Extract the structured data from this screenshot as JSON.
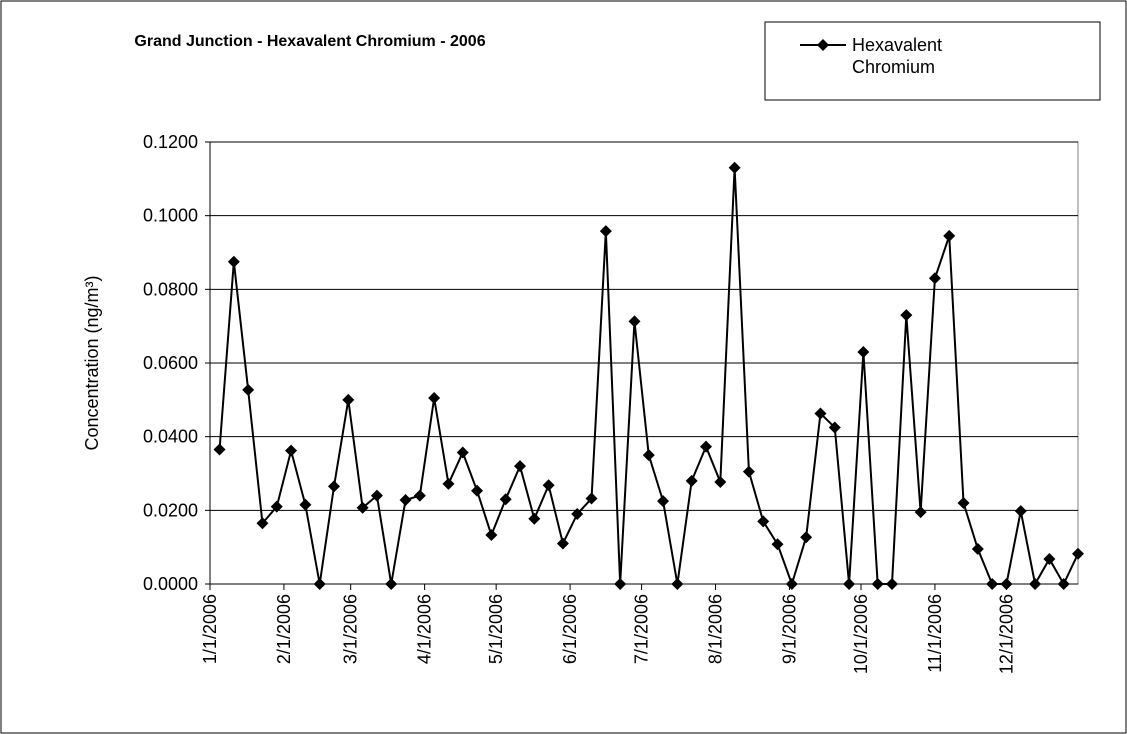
{
  "chart_data": {
    "type": "line",
    "title": "Grand Junction - Hexavalent Chromium - 2006",
    "ylabel": "Concentration (ng/m³)",
    "x": [
      "1/5/2006",
      "1/11/2006",
      "1/17/2006",
      "1/23/2006",
      "1/29/2006",
      "2/4/2006",
      "2/10/2006",
      "2/16/2006",
      "2/22/2006",
      "2/28/2006",
      "3/6/2006",
      "3/12/2006",
      "3/18/2006",
      "3/24/2006",
      "3/30/2006",
      "4/5/2006",
      "4/11/2006",
      "4/17/2006",
      "4/23/2006",
      "4/29/2006",
      "5/5/2006",
      "5/11/2006",
      "5/17/2006",
      "5/23/2006",
      "5/29/2006",
      "6/4/2006",
      "6/10/2006",
      "6/16/2006",
      "6/22/2006",
      "6/28/2006",
      "7/4/2006",
      "7/10/2006",
      "7/16/2006",
      "7/22/2006",
      "7/28/2006",
      "8/3/2006",
      "8/9/2006",
      "8/15/2006",
      "8/21/2006",
      "8/27/2006",
      "9/2/2006",
      "9/8/2006",
      "9/14/2006",
      "9/20/2006",
      "9/26/2006",
      "10/2/2006",
      "10/8/2006",
      "10/14/2006",
      "10/20/2006",
      "10/26/2006",
      "11/1/2006",
      "11/7/2006",
      "11/13/2006",
      "11/19/2006",
      "11/25/2006",
      "12/1/2006",
      "12/7/2006",
      "12/13/2006",
      "12/19/2006",
      "12/25/2006",
      "12/31/2006"
    ],
    "series": [
      {
        "name": "Hexavalent Chromium",
        "color": "#000000",
        "values": [
          0.0365,
          0.0875,
          0.0527,
          0.0165,
          0.021,
          0.0362,
          0.0215,
          0,
          0.0265,
          0.05,
          0.0207,
          0.024,
          0,
          0.0228,
          0.024,
          0.0505,
          0.0272,
          0.0357,
          0.0253,
          0.0133,
          0.023,
          0.032,
          0.0177,
          0.0268,
          0.011,
          0.019,
          0.0232,
          0.0958,
          0,
          0.0713,
          0.035,
          0.0225,
          0,
          0.028,
          0.0373,
          0.0277,
          0.113,
          0.0305,
          0.017,
          0.0108,
          0,
          0.0127,
          0.0463,
          0.0425,
          0,
          0.063,
          0,
          0,
          0.073,
          0.0195,
          0.083,
          0.0945,
          0.022,
          0.0095,
          0,
          0,
          0.0198,
          0,
          0.0068,
          0,
          0.0082
        ]
      }
    ],
    "xlim": [
      "1/1/2006",
      "12/31/2006"
    ],
    "xticks": [
      "1/1/2006",
      "2/1/2006",
      "3/1/2006",
      "4/1/2006",
      "5/1/2006",
      "6/1/2006",
      "7/1/2006",
      "8/1/2006",
      "9/1/2006",
      "10/1/2006",
      "11/1/2006",
      "12/1/2006"
    ],
    "ylim": [
      0,
      0.12
    ],
    "yticks": [
      {
        "value": 0,
        "label": "0.0000"
      },
      {
        "value": 0.02,
        "label": "0.0200"
      },
      {
        "value": 0.04,
        "label": "0.0400"
      },
      {
        "value": 0.06,
        "label": "0.0600"
      },
      {
        "value": 0.08,
        "label": "0.0800"
      },
      {
        "value": 0.1,
        "label": "0.1000"
      },
      {
        "value": 0.12,
        "label": "0.1200"
      }
    ],
    "grid": true,
    "legend": "top-right"
  }
}
